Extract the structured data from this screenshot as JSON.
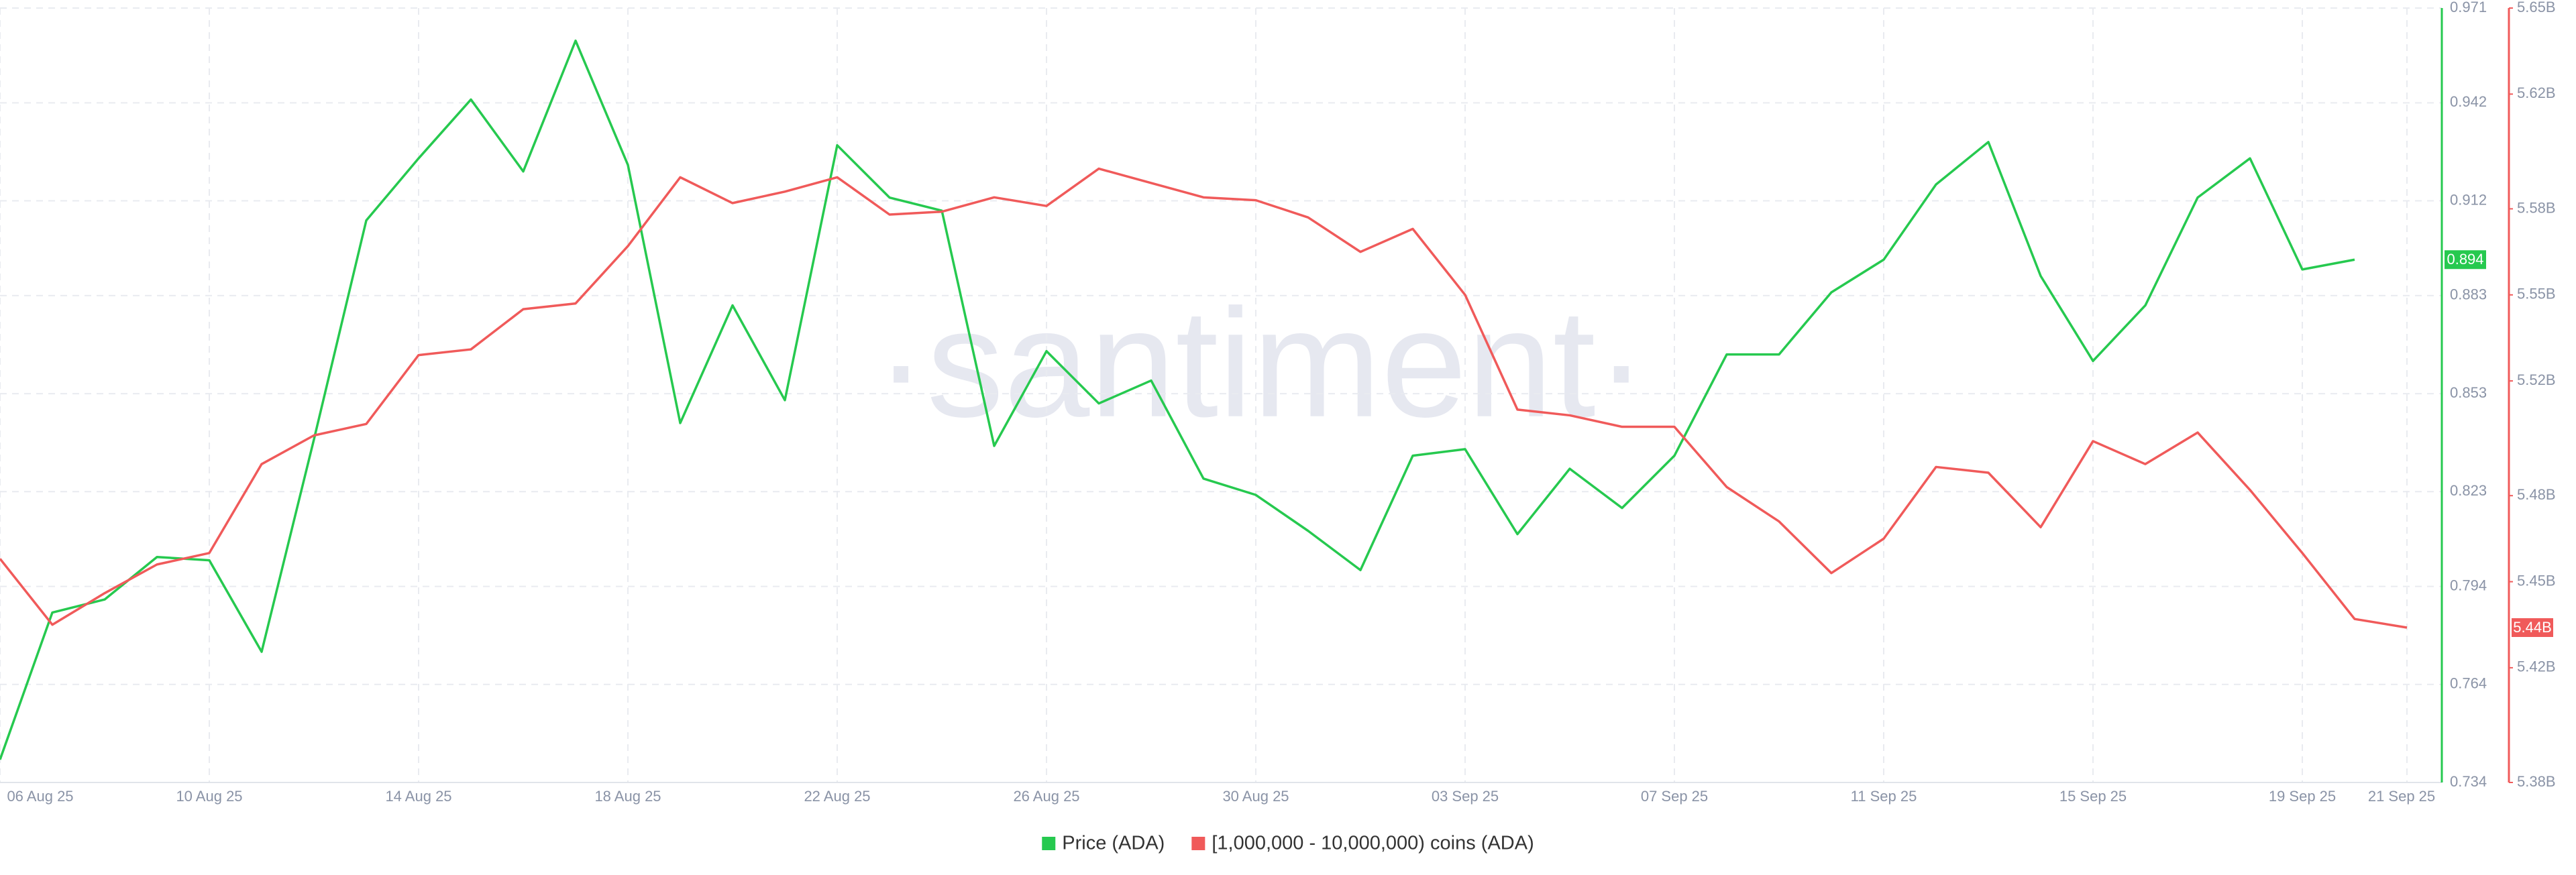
{
  "chart_data": {
    "type": "line",
    "watermark": "·santiment·",
    "categories": [
      "06 Aug 25",
      null,
      null,
      null,
      "10 Aug 25",
      null,
      null,
      null,
      "14 Aug 25",
      null,
      null,
      null,
      "18 Aug 25",
      null,
      null,
      null,
      "22 Aug 25",
      null,
      null,
      null,
      "26 Aug 25",
      null,
      null,
      null,
      "30 Aug 25",
      null,
      null,
      null,
      "03 Sep 25",
      null,
      null,
      null,
      "07 Sep 25",
      null,
      null,
      null,
      "11 Sep 25",
      null,
      null,
      null,
      "15 Sep 25",
      null,
      null,
      null,
      "19 Sep 25",
      null,
      "21 Sep 25"
    ],
    "series": [
      {
        "name": "Price (ADA)",
        "color": "#26c94f",
        "axis": "y",
        "values": [
          0.741,
          0.786,
          0.79,
          0.803,
          0.802,
          0.774,
          0.839,
          0.906,
          0.925,
          0.943,
          0.921,
          0.961,
          0.923,
          0.844,
          0.88,
          0.851,
          0.929,
          0.913,
          0.909,
          0.837,
          0.866,
          0.85,
          0.857,
          0.827,
          0.822,
          0.811,
          0.799,
          0.834,
          0.836,
          0.81,
          0.83,
          0.818,
          0.834,
          0.865,
          0.865,
          0.884,
          0.894,
          0.917,
          0.93,
          0.889,
          0.863,
          0.88,
          0.913,
          0.925,
          0.891,
          0.894,
          null
        ]
      },
      {
        "name": "[1,000,000 - 10,000,000) coins (ADA)",
        "color": "#f05a5a",
        "axis": "y2",
        "values": [
          5458000000,
          5435000000,
          5446000000,
          5456000000,
          5460000000,
          5491000000,
          5501000000,
          5505000000,
          5529000000,
          5531000000,
          5545000000,
          5547000000,
          5567000000,
          5591000000,
          5582000000,
          5586000000,
          5591000000,
          5578000000,
          5579000000,
          5584000000,
          5581000000,
          5594000000,
          5589000000,
          5584000000,
          5583000000,
          5577000000,
          5565000000,
          5573000000,
          5550000000,
          5510000000,
          5508000000,
          5504000000,
          5504000000,
          5483000000,
          5471000000,
          5453000000,
          5465000000,
          5490000000,
          5488000000,
          5469000000,
          5499000000,
          5491000000,
          5502000000,
          5482000000,
          5460000000,
          5437000000,
          5434000000
        ],
        "value_labels": [
          null,
          null,
          null,
          null,
          null,
          null,
          null,
          null,
          null,
          null,
          null,
          null,
          null,
          null,
          null,
          null,
          null,
          null,
          null,
          null,
          null,
          null,
          null,
          null,
          null,
          null,
          null,
          null,
          null,
          null,
          null,
          null,
          null,
          null,
          null,
          null,
          null,
          null,
          null,
          null,
          null,
          null,
          null,
          null,
          null,
          null,
          "5.44B"
        ]
      }
    ],
    "ylim": [
      0.734,
      0.971
    ],
    "yticks": [
      0.734,
      0.764,
      0.794,
      0.823,
      0.853,
      0.883,
      0.912,
      0.942,
      0.971
    ],
    "y2lim": [
      5380000000,
      5650000000
    ],
    "y2ticks": [
      {
        "value": 5380000000,
        "label": "5.38B"
      },
      {
        "value": 5420000000,
        "label": "5.42B"
      },
      {
        "value": 5450000000,
        "label": "5.45B"
      },
      {
        "value": 5480000000,
        "label": "5.48B"
      },
      {
        "value": 5520000000,
        "label": "5.52B"
      },
      {
        "value": 5550000000,
        "label": "5.55B"
      },
      {
        "value": 5580000000,
        "label": "5.58B"
      },
      {
        "value": 5620000000,
        "label": "5.62B"
      },
      {
        "value": 5650000000,
        "label": "5.65B"
      }
    ],
    "grid": true
  }
}
